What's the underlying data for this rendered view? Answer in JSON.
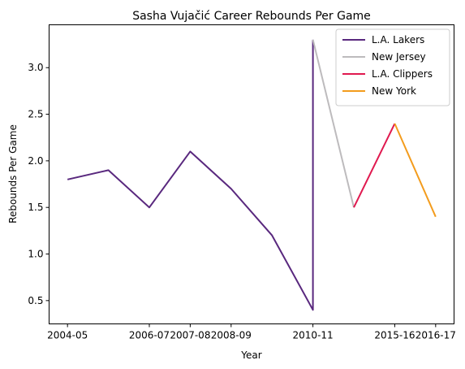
{
  "chart_data": {
    "type": "line",
    "title": "Sasha Vujačić Career Rebounds Per Game",
    "xlabel": "Year",
    "ylabel": "Rebounds Per Game",
    "x_ticks": [
      "2004-05",
      "2006-07",
      "2007-08",
      "2008-09",
      "2010-11",
      "2015-16",
      "2016-17"
    ],
    "ylim": [
      0.25,
      3.46
    ],
    "y_ticks": [
      0.5,
      1.0,
      1.5,
      2.0,
      2.5,
      3.0
    ],
    "y_tick_labels": [
      "0.5",
      "1.0",
      "1.5",
      "2.0",
      "2.5",
      "3.0"
    ],
    "grid": false,
    "legend_position": "top-right",
    "series": [
      {
        "name": "L.A. Lakers",
        "color": "#59287e",
        "points": [
          [
            0,
            1.8
          ],
          [
            1,
            1.9
          ],
          [
            2,
            1.5
          ],
          [
            3,
            2.1
          ],
          [
            4,
            1.7
          ],
          [
            5,
            1.2
          ],
          [
            6,
            0.4
          ],
          [
            6,
            3.3
          ]
        ]
      },
      {
        "name": "New Jersey",
        "color": "#bdbbbd",
        "points": [
          [
            6,
            3.3
          ],
          [
            7,
            1.5
          ]
        ]
      },
      {
        "name": "L.A. Clippers",
        "color": "#e0194f",
        "points": [
          [
            7,
            1.5
          ],
          [
            8,
            2.4
          ]
        ]
      },
      {
        "name": "New York",
        "color": "#f39c1d",
        "points": [
          [
            8,
            2.4
          ],
          [
            9,
            1.4
          ]
        ]
      }
    ]
  }
}
